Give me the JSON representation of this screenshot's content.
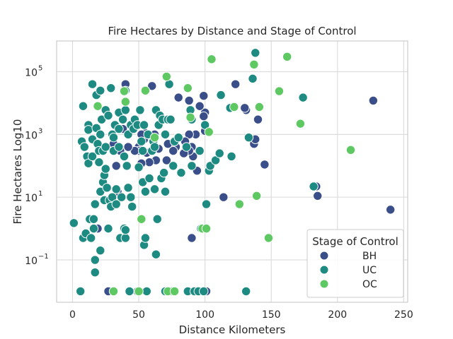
{
  "chart_data": {
    "type": "scatter",
    "title": "Fire Hectares by Distance and Stage of Control",
    "xlabel": "Distance Kilometers",
    "ylabel": "Fire Hectares Log10",
    "xlim": [
      -12,
      253
    ],
    "ylim_log10": [
      -2.35,
      5.98
    ],
    "y_scale": "log",
    "x_ticks": [
      0,
      50,
      100,
      150,
      200,
      250
    ],
    "x_tick_labels": [
      "0",
      "50",
      "100",
      "150",
      "200",
      "250"
    ],
    "y_ticks": [
      0.1,
      10,
      1000,
      100000
    ],
    "y_tick_labels": [
      "10",
      "10",
      "10",
      "10"
    ],
    "y_tick_exponents": [
      "−1",
      "1",
      "3",
      "5"
    ],
    "grid": true,
    "legend": {
      "title": "Stage of Control",
      "placement": "bottom-right",
      "entries": [
        "BH",
        "UC",
        "OC"
      ]
    },
    "series": [
      {
        "name": "BH",
        "color": "#3a4f8a",
        "points": [
          [
            227,
            12000
          ],
          [
            240,
            4
          ],
          [
            185,
            11
          ],
          [
            184,
            22
          ],
          [
            145,
            110
          ],
          [
            137,
            500
          ],
          [
            138,
            700
          ],
          [
            140,
            3000
          ],
          [
            131,
            6000
          ],
          [
            130,
            7000
          ],
          [
            123,
            40000
          ],
          [
            114,
            10
          ],
          [
            104,
            100
          ],
          [
            100,
            1300
          ],
          [
            100,
            5000
          ],
          [
            99,
            3800
          ],
          [
            99,
            17000
          ],
          [
            96,
            8000
          ],
          [
            94,
            70
          ],
          [
            93,
            1000
          ],
          [
            91,
            200
          ],
          [
            90,
            400
          ],
          [
            88,
            12000
          ],
          [
            88,
            1000
          ],
          [
            88,
            300
          ],
          [
            85,
            600
          ],
          [
            84,
            250
          ],
          [
            80,
            15000
          ],
          [
            78,
            400
          ],
          [
            76,
            300
          ],
          [
            72,
            500
          ],
          [
            71,
            150
          ],
          [
            65,
            350
          ],
          [
            63,
            150
          ],
          [
            62,
            1000
          ],
          [
            60,
            300
          ],
          [
            60,
            35000
          ],
          [
            58,
            130
          ],
          [
            56,
            260
          ],
          [
            55,
            1100
          ],
          [
            54,
            700
          ],
          [
            52,
            1000
          ],
          [
            52,
            120
          ],
          [
            50,
            400
          ],
          [
            50,
            300
          ],
          [
            47,
            300
          ],
          [
            45,
            2000
          ],
          [
            42,
            400
          ],
          [
            40,
            40000
          ],
          [
            38,
            1500
          ],
          [
            36,
            300
          ],
          [
            34,
            15
          ],
          [
            33,
            100
          ],
          [
            31,
            500
          ],
          [
            27,
            0.01
          ],
          [
            19,
            1
          ],
          [
            49,
            0.01
          ],
          [
            101,
            0.01
          ],
          [
            90,
            0.5
          ]
        ]
      },
      {
        "name": "UC",
        "color": "#1e8b82",
        "points": [
          [
            1,
            1.5
          ],
          [
            6,
            0.01
          ],
          [
            8,
            8000
          ],
          [
            7,
            600
          ],
          [
            9,
            400
          ],
          [
            8,
            0.5
          ],
          [
            10,
            0.7
          ],
          [
            11,
            200
          ],
          [
            12,
            2000
          ],
          [
            12,
            1400
          ],
          [
            12,
            120
          ],
          [
            13,
            2
          ],
          [
            14,
            0.5
          ],
          [
            15,
            40000
          ],
          [
            15,
            700
          ],
          [
            15,
            200
          ],
          [
            16,
            2
          ],
          [
            16,
            1
          ],
          [
            17,
            0.04
          ],
          [
            17,
            6
          ],
          [
            17,
            0.1
          ],
          [
            18,
            18000
          ],
          [
            18,
            1600
          ],
          [
            19,
            500
          ],
          [
            20,
            300
          ],
          [
            20,
            130
          ],
          [
            21,
            25000
          ],
          [
            21,
            0.2
          ],
          [
            21,
            1000
          ],
          [
            21,
            15
          ],
          [
            22,
            3000
          ],
          [
            23,
            300
          ],
          [
            23,
            30
          ],
          [
            24,
            8
          ],
          [
            24,
            50
          ],
          [
            25,
            6000
          ],
          [
            25,
            400
          ],
          [
            25,
            80
          ],
          [
            26,
            20
          ],
          [
            27,
            1
          ],
          [
            27,
            4000
          ],
          [
            28,
            8
          ],
          [
            29,
            30000
          ],
          [
            29,
            5
          ],
          [
            30,
            1000
          ],
          [
            30,
            10
          ],
          [
            31,
            800
          ],
          [
            31,
            300
          ],
          [
            32,
            2000
          ],
          [
            33,
            6
          ],
          [
            33,
            18
          ],
          [
            35,
            5000
          ],
          [
            35,
            400
          ],
          [
            35,
            1500
          ],
          [
            36,
            0.5
          ],
          [
            37,
            10
          ],
          [
            38,
            3000
          ],
          [
            39,
            200
          ],
          [
            39,
            1
          ],
          [
            40,
            6000
          ],
          [
            40,
            25000
          ],
          [
            40,
            0.5
          ],
          [
            40,
            0.9
          ],
          [
            41,
            100
          ],
          [
            42,
            20
          ],
          [
            42,
            1000
          ],
          [
            43,
            0.01
          ],
          [
            44,
            2000
          ],
          [
            44,
            10
          ],
          [
            45,
            5
          ],
          [
            46,
            1500
          ],
          [
            47,
            3000
          ],
          [
            49,
            2000
          ],
          [
            50,
            90
          ],
          [
            51,
            6000
          ],
          [
            52,
            600
          ],
          [
            53,
            30
          ],
          [
            53,
            300
          ],
          [
            54,
            2000
          ],
          [
            54,
            0.3
          ],
          [
            55,
            0.5
          ],
          [
            55,
            15
          ],
          [
            56,
            0.01
          ],
          [
            57,
            1000
          ],
          [
            58,
            40
          ],
          [
            60,
            300
          ],
          [
            61,
            600
          ],
          [
            62,
            18
          ],
          [
            62,
            400
          ],
          [
            63,
            0.15
          ],
          [
            63,
            6000
          ],
          [
            64,
            2
          ],
          [
            65,
            2000
          ],
          [
            66,
            4000
          ],
          [
            67,
            40
          ],
          [
            68,
            3000
          ],
          [
            69,
            60
          ],
          [
            70,
            15
          ],
          [
            70,
            1000
          ],
          [
            70,
            0.01
          ],
          [
            72,
            3000
          ],
          [
            73,
            40000
          ],
          [
            74,
            3000
          ],
          [
            75,
            0.01
          ],
          [
            76,
            100
          ],
          [
            77,
            600
          ],
          [
            80,
            800
          ],
          [
            82,
            60
          ],
          [
            86,
            400
          ],
          [
            87,
            0.01
          ],
          [
            89,
            6000
          ],
          [
            90,
            100
          ],
          [
            90,
            3000
          ],
          [
            92,
            0.01
          ],
          [
            95,
            0.01
          ],
          [
            96,
            300
          ],
          [
            97,
            1
          ],
          [
            99,
            0.01
          ],
          [
            100,
            2000
          ],
          [
            101,
            6
          ],
          [
            103,
            70
          ],
          [
            104,
            100
          ],
          [
            108,
            150
          ],
          [
            111,
            250
          ],
          [
            112,
            18000
          ],
          [
            119,
            7000
          ],
          [
            120,
            200
          ],
          [
            131,
            0.01
          ],
          [
            133,
            800
          ],
          [
            136,
            60000
          ],
          [
            138,
            400000
          ],
          [
            174,
            15000
          ],
          [
            182,
            22
          ]
        ]
      },
      {
        "name": "OC",
        "color": "#5ec962",
        "points": [
          [
            19,
            8000
          ],
          [
            31,
            0.01
          ],
          [
            39,
            24000
          ],
          [
            40,
            11000
          ],
          [
            50,
            0.01
          ],
          [
            52,
            2
          ],
          [
            55,
            25000
          ],
          [
            62,
            800
          ],
          [
            71,
            70000
          ],
          [
            72,
            0.01
          ],
          [
            77,
            0.01
          ],
          [
            87,
            30000
          ],
          [
            89,
            3500
          ],
          [
            98,
            1
          ],
          [
            101,
            1
          ],
          [
            103,
            1200
          ],
          [
            105,
            250000
          ],
          [
            122,
            7500
          ],
          [
            126,
            6
          ],
          [
            137,
            170000
          ],
          [
            139,
            11
          ],
          [
            141,
            7500
          ],
          [
            148,
            0.5
          ],
          [
            156,
            24000
          ],
          [
            162,
            300000
          ],
          [
            172,
            2200
          ],
          [
            210,
            320
          ]
        ]
      }
    ]
  }
}
